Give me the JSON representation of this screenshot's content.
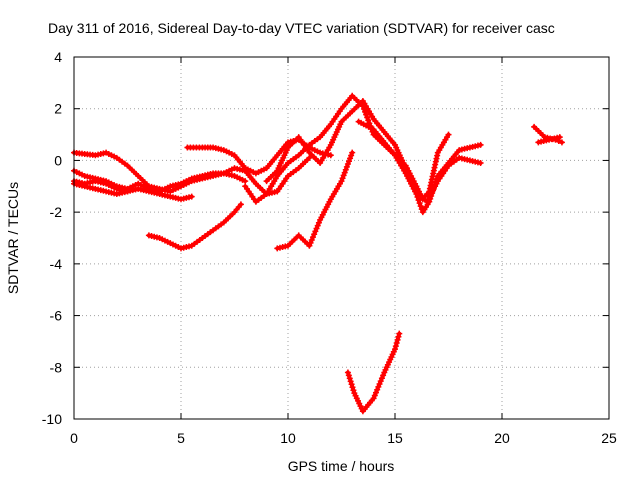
{
  "chart_data": {
    "type": "scatter",
    "title": "Day 311 of 2016, Sidereal Day-to-day VTEC variation (SDTVAR) for receiver casc",
    "xlabel": "GPS time / hours",
    "ylabel": "SDTVAR / TECUs",
    "xlim": [
      0,
      25
    ],
    "ylim": [
      -10,
      4
    ],
    "xticks": [
      "0",
      "5",
      "10",
      "15",
      "20",
      "25"
    ],
    "yticks": [
      "-10",
      "-8",
      "-6",
      "-4",
      "-2",
      "0",
      "2",
      "4"
    ],
    "grid": true,
    "legend": "none",
    "color": "#ff0000",
    "series": [
      {
        "x": [
          0.0,
          0.5,
          1.0,
          1.5,
          2.0,
          2.5,
          3.0,
          3.5,
          4.0,
          4.5,
          5.0,
          5.5,
          6.0,
          6.5,
          7.0,
          7.5,
          8.0
        ],
        "y": [
          0.3,
          0.25,
          0.2,
          0.3,
          0.1,
          -0.2,
          -0.6,
          -1.0,
          -1.1,
          -1.2,
          -1.0,
          -0.8,
          -0.7,
          -0.6,
          -0.5,
          -0.6,
          -0.8
        ]
      },
      {
        "x": [
          0.0,
          0.5,
          1.0,
          1.5,
          2.0,
          2.5,
          3.0,
          3.5,
          4.0,
          4.5,
          5.0,
          5.5
        ],
        "y": [
          -0.8,
          -0.9,
          -0.8,
          -0.9,
          -1.1,
          -1.2,
          -1.1,
          -1.2,
          -1.3,
          -1.4,
          -1.5,
          -1.4
        ]
      },
      {
        "x": [
          0.0,
          0.5,
          1.0,
          1.5,
          2.0,
          2.5,
          3.0,
          3.5,
          4.0,
          4.5,
          5.0,
          5.5,
          6.0,
          6.5,
          7.0,
          7.5,
          8.0,
          8.5,
          9.0,
          9.5,
          10.0,
          10.5,
          11.0
        ],
        "y": [
          -0.4,
          -0.6,
          -0.7,
          -0.8,
          -1.0,
          -1.1,
          -0.9,
          -1.1,
          -1.2,
          -1.0,
          -0.9,
          -0.7,
          -0.6,
          -0.5,
          -0.5,
          -0.3,
          -0.4,
          -0.9,
          -1.3,
          -1.2,
          -0.6,
          -0.3,
          0.1
        ]
      },
      {
        "x": [
          0.0,
          0.5,
          1.0,
          1.5,
          2.0,
          2.5
        ],
        "y": [
          -0.9,
          -1.0,
          -1.1,
          -1.2,
          -1.3,
          -1.2
        ]
      },
      {
        "x": [
          5.3,
          6.0,
          6.5,
          7.0,
          7.5,
          8.0,
          8.5,
          9.0,
          9.5,
          10.0,
          10.5,
          11.0,
          11.5,
          12.0
        ],
        "y": [
          0.5,
          0.5,
          0.5,
          0.4,
          0.2,
          -0.3,
          -0.5,
          -0.3,
          0.2,
          0.7,
          0.8,
          0.5,
          0.3,
          0.2
        ]
      },
      {
        "x": [
          3.5,
          4.0,
          4.5,
          5.0,
          5.5,
          6.0,
          6.5,
          7.0,
          7.5,
          7.8
        ],
        "y": [
          -2.9,
          -3.0,
          -3.2,
          -3.4,
          -3.3,
          -3.0,
          -2.7,
          -2.4,
          -2.0,
          -1.7
        ]
      },
      {
        "x": [
          8.0,
          8.5,
          9.0,
          9.5,
          10.0,
          10.5,
          11.0,
          11.5,
          12.0,
          12.5,
          13.0,
          13.5,
          14.0,
          14.5,
          15.0,
          15.5,
          16.0,
          16.3,
          16.6,
          17.0,
          17.5,
          18.0,
          18.5,
          19.0
        ],
        "y": [
          -1.0,
          -1.6,
          -1.3,
          -0.6,
          -0.1,
          0.2,
          0.6,
          0.9,
          1.4,
          2.0,
          2.5,
          2.1,
          1.0,
          0.6,
          0.2,
          -0.5,
          -1.3,
          -2.0,
          -1.6,
          -0.6,
          -0.1,
          0.4,
          0.5,
          0.6
        ]
      },
      {
        "x": [
          9.0,
          9.5,
          10.0,
          10.5,
          11.0,
          11.5,
          12.0,
          12.5,
          13.0,
          13.5,
          14.0,
          14.5,
          15.0,
          15.5,
          16.0,
          16.5,
          17.0,
          17.5,
          18.0,
          18.5,
          19.0
        ],
        "y": [
          -0.8,
          -0.4,
          0.5,
          0.9,
          0.3,
          -0.1,
          0.6,
          1.5,
          1.9,
          2.3,
          1.6,
          1.1,
          0.6,
          -0.3,
          -1.2,
          -1.6,
          -0.8,
          -0.2,
          0.1,
          0.0,
          -0.1
        ]
      },
      {
        "x": [
          9.5,
          10.0,
          10.5,
          11.0,
          11.5,
          12.0,
          12.5,
          13.0
        ],
        "y": [
          -3.4,
          -3.3,
          -2.9,
          -3.3,
          -2.3,
          -1.5,
          -0.8,
          0.3
        ]
      },
      {
        "x": [
          13.3,
          14.0,
          14.8,
          15.5,
          16.0,
          16.3,
          16.6,
          17.0,
          17.5
        ],
        "y": [
          1.5,
          1.2,
          0.4,
          -0.2,
          -1.0,
          -1.5,
          -1.2,
          0.3,
          1.0
        ]
      },
      {
        "x": [
          12.8,
          13.1,
          13.5,
          14.0,
          14.5,
          15.0,
          15.2
        ],
        "y": [
          -8.2,
          -9.0,
          -9.7,
          -9.2,
          -8.2,
          -7.3,
          -6.7
        ]
      },
      {
        "x": [
          21.5,
          22.0,
          22.5,
          22.8
        ],
        "y": [
          1.3,
          0.9,
          0.8,
          0.7
        ]
      },
      {
        "x": [
          21.7,
          22.2,
          22.7
        ],
        "y": [
          0.7,
          0.8,
          0.9
        ]
      }
    ]
  }
}
